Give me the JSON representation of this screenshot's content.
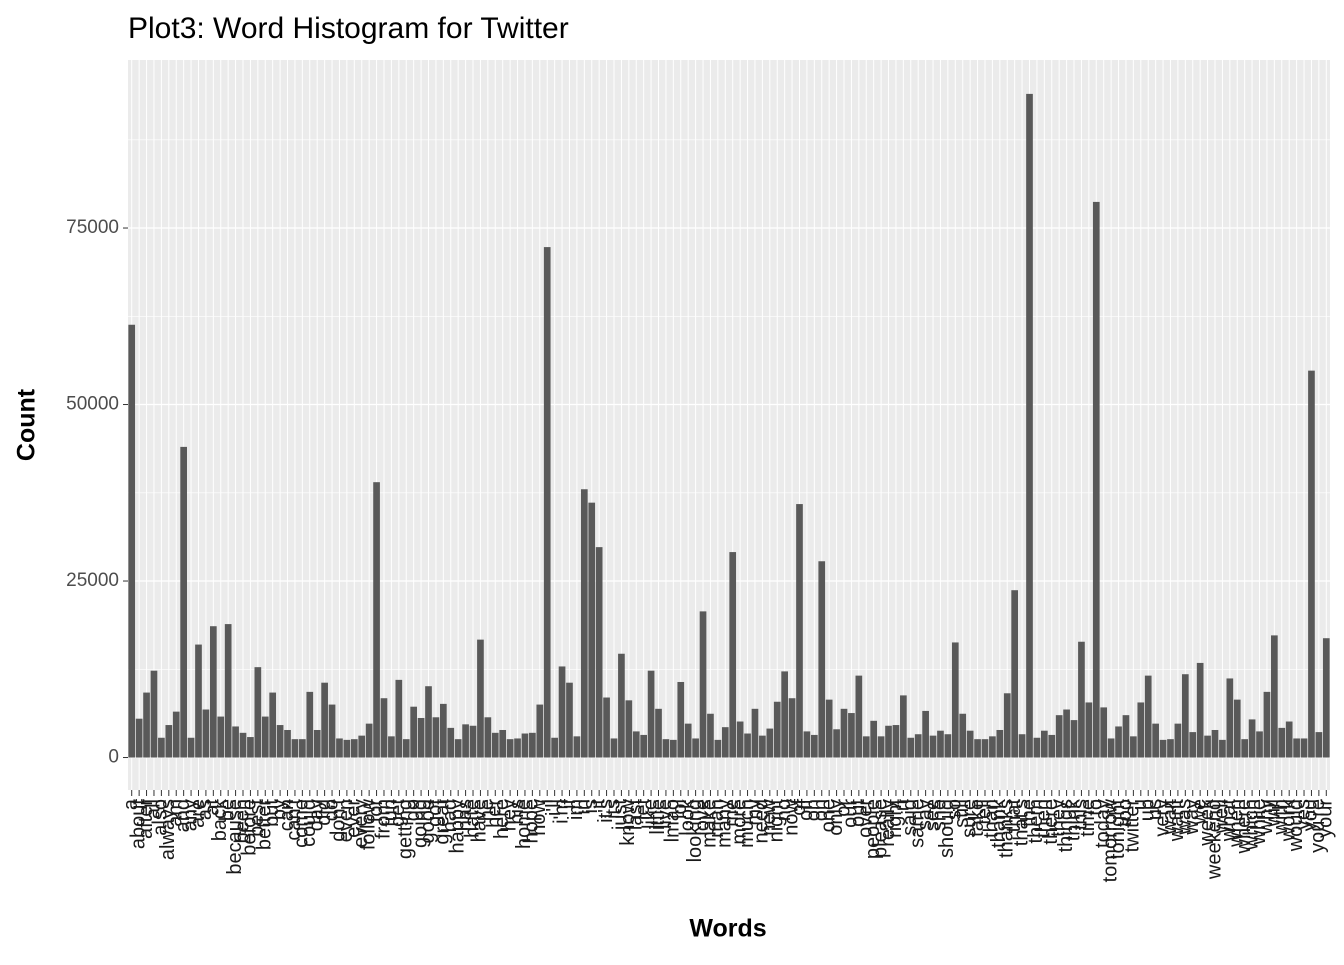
{
  "chart_data": {
    "type": "bar",
    "title": "Plot3: Word Histogram for Twitter",
    "x_label": "Words",
    "y_label": "Count",
    "categories": [
      "a",
      "about",
      "after",
      "all",
      "also",
      "always",
      "am",
      "and",
      "any",
      "are",
      "as",
      "at",
      "back",
      "be",
      "because",
      "been",
      "before",
      "best",
      "better",
      "but",
      "by",
      "can",
      "can't",
      "come",
      "could",
      "day",
      "did",
      "do",
      "don't",
      "even",
      "ever",
      "every",
      "follow",
      "for",
      "from",
      "fun",
      "get",
      "getting",
      "go",
      "going",
      "good",
      "got",
      "great",
      "had",
      "happy",
      "has",
      "hate",
      "have",
      "he",
      "her",
      "here",
      "hey",
      "his",
      "home",
      "hope",
      "how",
      "i",
      "i'll",
      "i'm",
      "if",
      "im",
      "in",
      "is",
      "it",
      "it's",
      "its",
      "just",
      "know",
      "last",
      "let",
      "like",
      "little",
      "live",
      "lmao",
      "lol",
      "look",
      "looking",
      "love",
      "make",
      "man",
      "many",
      "me",
      "more",
      "much",
      "my",
      "need",
      "new",
      "night",
      "no",
      "now",
      "of",
      "off",
      "oh",
      "on",
      "one",
      "only",
      "or",
      "our",
      "out",
      "over",
      "people",
      "please",
      "really",
      "right",
      "rt",
      "said",
      "same",
      "say",
      "see",
      "she",
      "should",
      "so",
      "still",
      "sure",
      "take",
      "tell",
      "than",
      "thank",
      "thanks",
      "that",
      "that's",
      "the",
      "them",
      "then",
      "there",
      "they",
      "things",
      "think",
      "this",
      "time",
      "to",
      "today",
      "tomorrow",
      "tonight",
      "too",
      "twitter",
      "u",
      "up",
      "us",
      "very",
      "wait",
      "want",
      "was",
      "way",
      "we",
      "week",
      "weekend",
      "well",
      "what",
      "when",
      "where",
      "which",
      "while",
      "why",
      "will",
      "with",
      "work",
      "would",
      "yes",
      "you",
      "you're",
      "your"
    ],
    "values": [
      61300,
      5500,
      9200,
      12300,
      2800,
      4600,
      6500,
      44000,
      2800,
      16000,
      6800,
      18600,
      5800,
      18900,
      4400,
      3500,
      2900,
      12800,
      5800,
      9200,
      4600,
      3900,
      2600,
      2600,
      9300,
      3900,
      10600,
      7500,
      2700,
      2500,
      2600,
      3100,
      4800,
      39000,
      8400,
      3000,
      11000,
      2600,
      7200,
      5600,
      10100,
      5700,
      7600,
      4200,
      2600,
      4700,
      4500,
      16700,
      5700,
      3500,
      3900,
      2600,
      2700,
      3400,
      3500,
      7500,
      72300,
      2800,
      12900,
      10600,
      3000,
      38000,
      36100,
      29800,
      8500,
      2700,
      14700,
      8100,
      3700,
      3200,
      12300,
      6900,
      2600,
      2500,
      10700,
      4800,
      2700,
      20700,
      6200,
      2500,
      4300,
      29100,
      5100,
      3400,
      6900,
      3100,
      4100,
      7900,
      12200,
      8400,
      35900,
      3700,
      3200,
      27800,
      8200,
      4000,
      6900,
      6300,
      11600,
      3000,
      5200,
      3000,
      4500,
      4600,
      8800,
      2800,
      3300,
      6600,
      3100,
      3800,
      3300,
      16300,
      6200,
      3800,
      2600,
      2600,
      3000,
      3900,
      9100,
      23700,
      3300,
      94000,
      2800,
      3800,
      3200,
      6000,
      6800,
      5300,
      16400,
      7800,
      78700,
      7100,
      2700,
      4400,
      6000,
      3000,
      7800,
      11600,
      4800,
      2500,
      2600,
      4800,
      11800,
      3600,
      13400,
      3100,
      3900,
      2500,
      11200,
      8200,
      2600,
      5400,
      3700,
      9300,
      17300,
      4200,
      5100,
      2700,
      2700,
      54800,
      3600,
      16900
    ],
    "color": "#595959",
    "ylim": [
      -4600,
      98800
    ],
    "yticks": [
      0,
      25000,
      50000,
      75000
    ],
    "grid": true
  }
}
